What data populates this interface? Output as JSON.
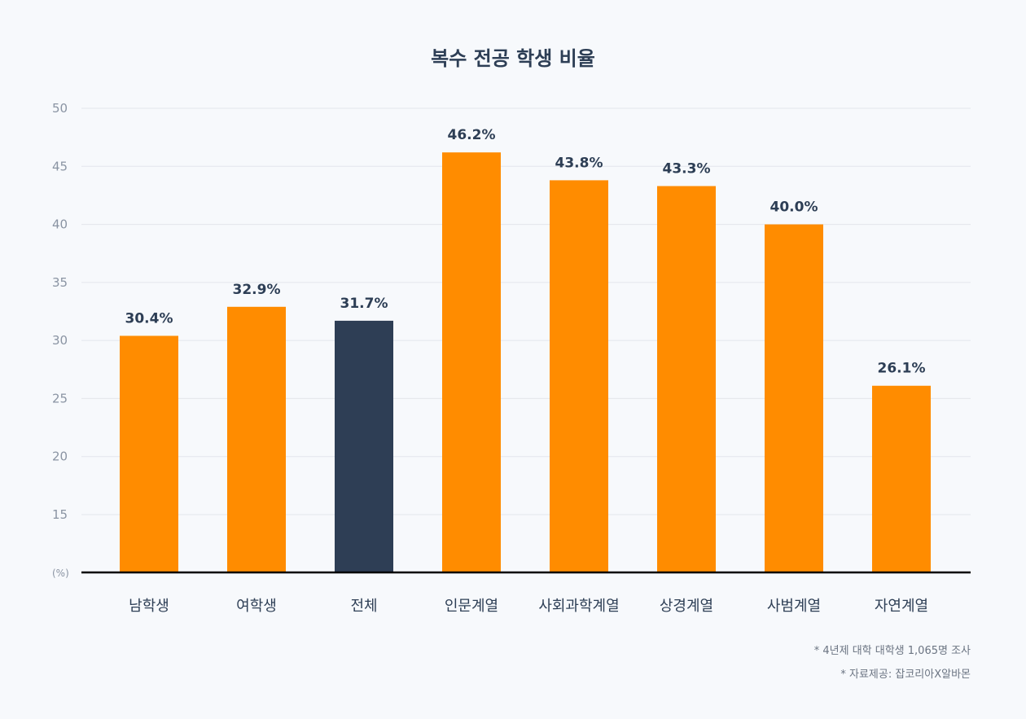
{
  "chart_data": {
    "type": "bar",
    "title": "복수 전공 학생 비율",
    "categories": [
      "남학생",
      "여학생",
      "전체",
      "인문계열",
      "사회과학계열",
      "상경계열",
      "사범계열",
      "자연계열"
    ],
    "values": [
      30.4,
      32.9,
      31.7,
      46.2,
      43.8,
      43.3,
      40.0,
      26.1
    ],
    "value_labels": [
      "30.4%",
      "32.9%",
      "31.7%",
      "46.2%",
      "43.8%",
      "43.3%",
      "40.0%",
      "26.1%"
    ],
    "highlight_index": 2,
    "y_ticks": [
      "50",
      "45",
      "40",
      "35",
      "30",
      "25",
      "20",
      "15"
    ],
    "y_unit_label": "(%)",
    "ylim": [
      11.3,
      50
    ],
    "grid": true,
    "colors": {
      "bar": "#ff8c00",
      "highlight": "#2e3e55",
      "axis": "#000000",
      "grid": "#e3e6eb"
    }
  },
  "notes": [
    "* 4년제 대학 대학생 1,065명 조사",
    "* 자료제공: 잡코리아X알바몬"
  ]
}
